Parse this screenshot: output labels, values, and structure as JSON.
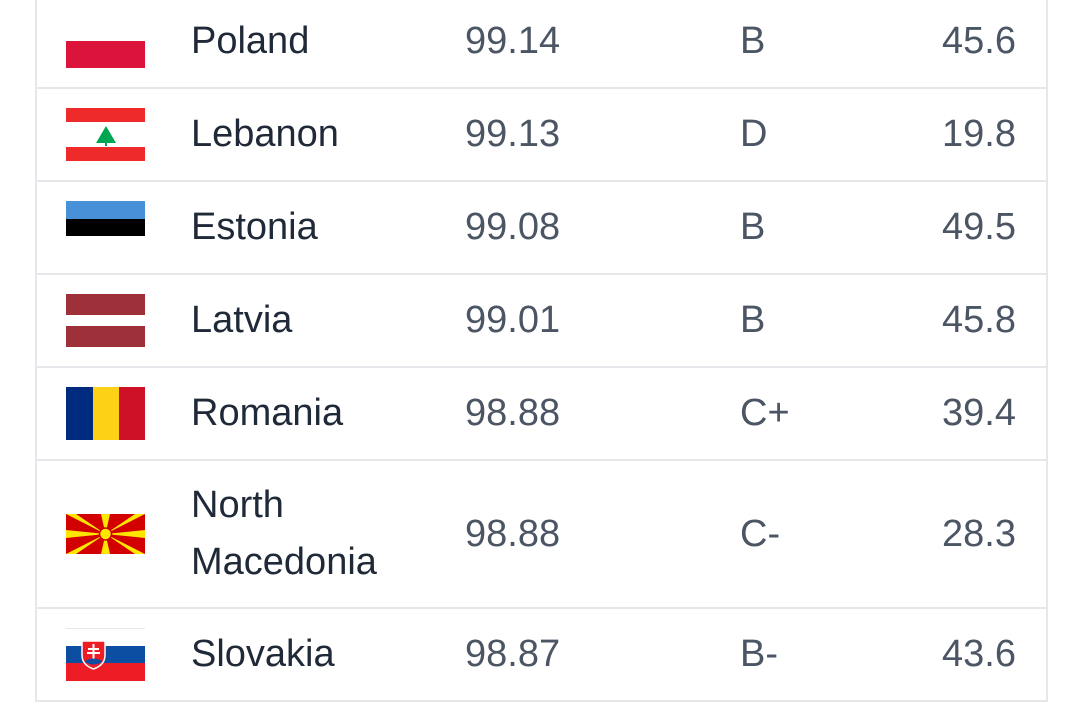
{
  "rows": [
    {
      "country": "Poland",
      "score": "99.14",
      "grade": "B",
      "value": "45.6",
      "flag": "poland-flag"
    },
    {
      "country": "Lebanon",
      "score": "99.13",
      "grade": "D",
      "value": "19.8",
      "flag": "lebanon-flag"
    },
    {
      "country": "Estonia",
      "score": "99.08",
      "grade": "B",
      "value": "49.5",
      "flag": "estonia-flag"
    },
    {
      "country": "Latvia",
      "score": "99.01",
      "grade": "B",
      "value": "45.8",
      "flag": "latvia-flag"
    },
    {
      "country": "Romania",
      "score": "98.88",
      "grade": "C+",
      "value": "39.4",
      "flag": "romania-flag"
    },
    {
      "country": "North Macedonia",
      "score": "98.88",
      "grade": "C-",
      "value": "28.3",
      "flag": "north-macedonia-flag"
    },
    {
      "country": "Slovakia",
      "score": "98.87",
      "grade": "B-",
      "value": "43.6",
      "flag": "slovakia-flag"
    }
  ]
}
